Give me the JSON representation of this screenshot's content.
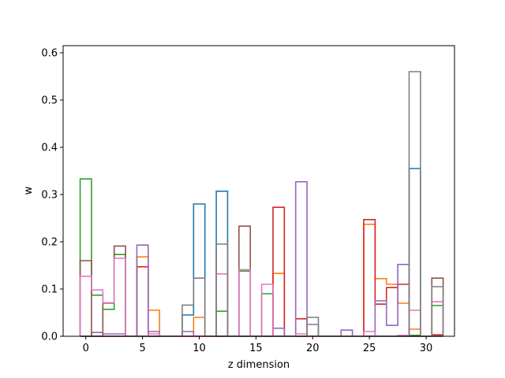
{
  "chart_data": {
    "type": "histogram-step",
    "title": "",
    "xlabel": "z dimension",
    "ylabel": "w",
    "xlim": [
      -2,
      32.5
    ],
    "ylim": [
      0,
      0.615
    ],
    "xticks": [
      0,
      5,
      10,
      15,
      20,
      25,
      30
    ],
    "yticks": [
      0.0,
      0.1,
      0.2,
      0.3,
      0.4,
      0.5,
      0.6
    ],
    "bins": [
      0,
      1,
      2,
      3,
      4,
      5,
      6,
      7,
      8,
      9,
      10,
      11,
      12,
      13,
      14,
      15,
      16,
      17,
      18,
      19,
      20,
      21,
      22,
      23,
      24,
      25,
      26,
      27,
      28,
      29,
      30,
      31
    ],
    "bar_width": 1,
    "grid": false,
    "legend": "none",
    "series": [
      {
        "color": "#1f77b4",
        "values": [
          0,
          0,
          0,
          0,
          0,
          0,
          0,
          0,
          0,
          0.045,
          0.28,
          0,
          0.307,
          0,
          0,
          0,
          0,
          0,
          0,
          0,
          0,
          0,
          0,
          0,
          0,
          0,
          0,
          0,
          0,
          0.355,
          0,
          0
        ]
      },
      {
        "color": "#ff7f0e",
        "values": [
          0,
          0,
          0,
          0,
          0,
          0.168,
          0.055,
          0,
          0,
          0,
          0.04,
          0,
          0,
          0,
          0,
          0,
          0,
          0.133,
          0,
          0,
          0,
          0,
          0,
          0,
          0,
          0.237,
          0.122,
          0.11,
          0.07,
          0.015,
          0,
          0
        ]
      },
      {
        "color": "#2ca02c",
        "values": [
          0.333,
          0.087,
          0.057,
          0.173,
          0,
          0,
          0,
          0,
          0,
          0,
          0,
          0,
          0.053,
          0,
          0.138,
          0,
          0.09,
          0,
          0,
          0,
          0,
          0,
          0,
          0,
          0,
          0,
          0,
          0,
          0,
          0.002,
          0,
          0.065
        ]
      },
      {
        "color": "#d62728",
        "values": [
          0,
          0,
          0,
          0,
          0,
          0.147,
          0,
          0,
          0,
          0,
          0,
          0,
          0,
          0,
          0,
          0,
          0,
          0.273,
          0,
          0.037,
          0,
          0,
          0,
          0,
          0,
          0.247,
          0.068,
          0.103,
          0.11,
          0,
          0,
          0.003
        ]
      },
      {
        "color": "#9467bd",
        "values": [
          0,
          0.008,
          0.005,
          0.005,
          0,
          0.193,
          0.01,
          0,
          0,
          0.01,
          0,
          0,
          0,
          0,
          0,
          0,
          0,
          0.017,
          0,
          0.327,
          0.025,
          0,
          0,
          0.013,
          0,
          0,
          0.075,
          0.023,
          0.152,
          0,
          0,
          0
        ]
      },
      {
        "color": "#8c564b",
        "values": [
          0.16,
          0,
          0.07,
          0.191,
          0,
          0,
          0,
          0,
          0,
          0,
          0,
          0,
          0,
          0,
          0.233,
          0,
          0,
          0,
          0,
          0,
          0,
          0,
          0,
          0,
          0,
          0,
          0,
          0,
          0,
          0,
          0,
          0.123
        ]
      },
      {
        "color": "#e377c2",
        "values": [
          0.127,
          0.098,
          0.071,
          0.165,
          0,
          0,
          0.005,
          0,
          0,
          0,
          0,
          0,
          0.132,
          0,
          0.141,
          0,
          0.11,
          0,
          0,
          0.005,
          0,
          0,
          0,
          0,
          0,
          0.01,
          0,
          0,
          0.002,
          0.055,
          0,
          0.073
        ]
      },
      {
        "color": "#7f7f7f",
        "values": [
          0,
          0,
          0,
          0,
          0,
          0,
          0,
          0,
          0,
          0.066,
          0.123,
          0,
          0.195,
          0,
          0,
          0,
          0,
          0,
          0,
          0,
          0.04,
          0,
          0,
          0,
          0,
          0,
          0,
          0,
          0,
          0.56,
          0,
          0.105
        ]
      }
    ]
  }
}
